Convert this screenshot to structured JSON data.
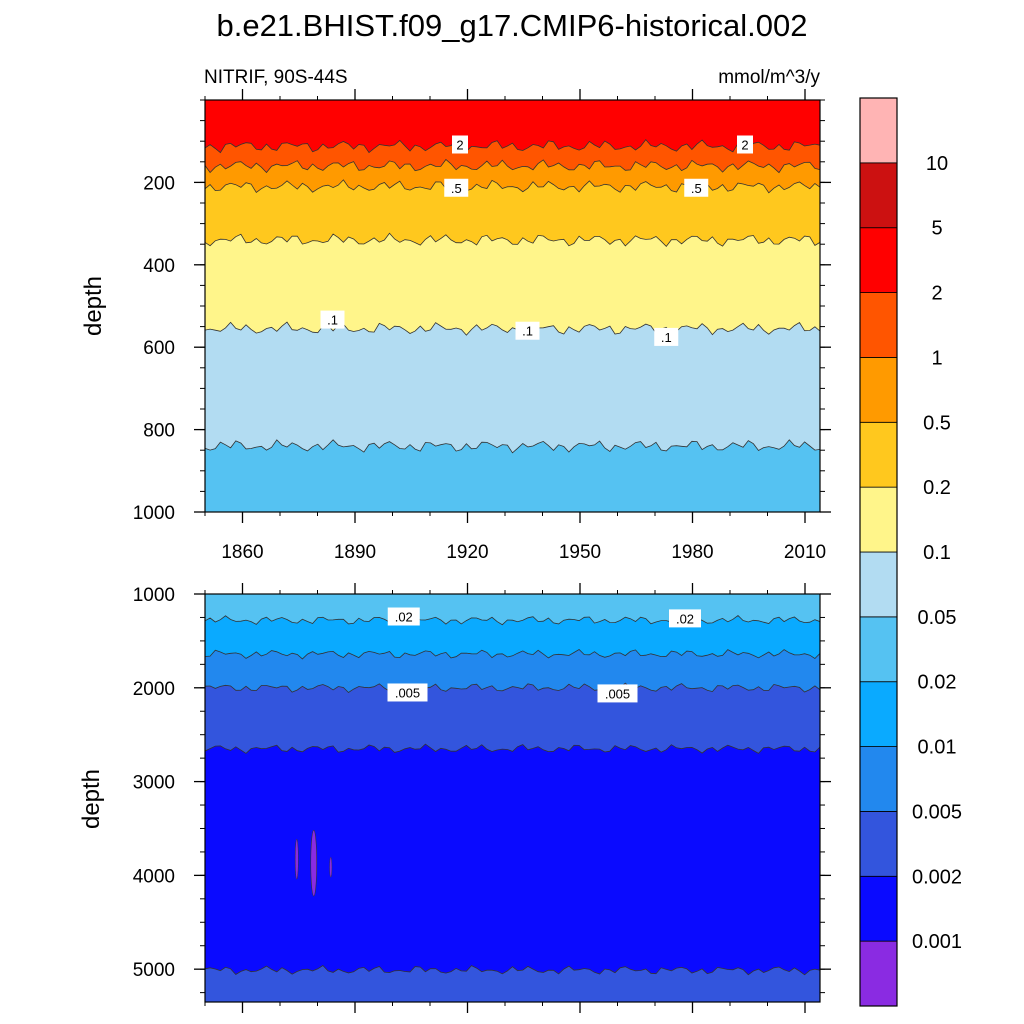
{
  "title": "b.e21.BHIST.f09_g17.CMIP6-historical.002",
  "colors": {
    "levels": [
      "#8a2be2",
      "#0a0aff",
      "#3355dd",
      "#2288ee",
      "#0aaaff",
      "#55c2f2",
      "#b2dcf2",
      "#fff58a",
      "#ffc81e",
      "#ff9a00",
      "#ff5500",
      "#ff0000",
      "#cc1111",
      "#ffb4b4"
    ],
    "contour_line": "#333333",
    "axes": "#000000"
  },
  "chart_data": [
    {
      "type": "heatmap",
      "subtype": "filled-contour",
      "left_label": "NITRIF, 90S-44S",
      "right_label": "mmol/m^3/y",
      "xlabel": "",
      "ylabel": "depth",
      "xlim": [
        1850,
        2014
      ],
      "ylim": [
        1000,
        0
      ],
      "y_inverted": true,
      "xticks": [
        1860,
        1890,
        1920,
        1950,
        1980,
        2010
      ],
      "xtick_labels": [
        "1860",
        "1890",
        "1920",
        "1950",
        "1980",
        "2010"
      ],
      "yticks": [
        200,
        400,
        600,
        800,
        1000
      ],
      "ytick_labels": [
        "200",
        "400",
        "600",
        "800",
        "1000"
      ],
      "bands": [
        {
          "min": 2,
          "max": 5,
          "top": 0,
          "bottom": 112
        },
        {
          "min": 1,
          "max": 2,
          "top": 112,
          "bottom": 160
        },
        {
          "min": 0.5,
          "max": 1,
          "top": 160,
          "bottom": 210
        },
        {
          "min": 0.2,
          "max": 0.5,
          "top": 210,
          "bottom": 340
        },
        {
          "min": 0.1,
          "max": 0.2,
          "top": 340,
          "bottom": 555
        },
        {
          "min": 0.05,
          "max": 0.1,
          "top": 555,
          "bottom": 840
        },
        {
          "min": 0.02,
          "max": 0.05,
          "top": 840,
          "bottom": 1000
        }
      ],
      "contour_labels": [
        {
          "text": "2",
          "x": 1918,
          "depth": 108
        },
        {
          "text": "2",
          "x": 1994,
          "depth": 108
        },
        {
          "text": ".5",
          "x": 1917,
          "depth": 213
        },
        {
          "text": ".5",
          "x": 1981,
          "depth": 213
        },
        {
          "text": ".1",
          "x": 1884,
          "depth": 533
        },
        {
          "text": ".1",
          "x": 1936,
          "depth": 560
        },
        {
          "text": ".1",
          "x": 1973,
          "depth": 575
        }
      ]
    },
    {
      "type": "heatmap",
      "subtype": "filled-contour",
      "xlabel": "",
      "ylabel": "depth",
      "xlim": [
        1850,
        2014
      ],
      "ylim": [
        5350,
        1000
      ],
      "y_inverted": true,
      "xticks": [
        1860,
        1890,
        1920,
        1950,
        1980,
        2010
      ],
      "xtick_labels": [
        "",
        "",
        "",
        "",
        "",
        ""
      ],
      "yticks": [
        1000,
        2000,
        3000,
        4000,
        5000
      ],
      "ytick_labels": [
        "1000",
        "2000",
        "3000",
        "4000",
        "5000"
      ],
      "bands": [
        {
          "min": 0.02,
          "max": 0.05,
          "top": 1000,
          "bottom": 1280
        },
        {
          "min": 0.01,
          "max": 0.02,
          "top": 1280,
          "bottom": 1640
        },
        {
          "min": 0.005,
          "max": 0.01,
          "top": 1640,
          "bottom": 2000
        },
        {
          "min": 0.002,
          "max": 0.005,
          "top": 2000,
          "bottom": 2650
        },
        {
          "min": 0.001,
          "max": 0.002,
          "top": 2650,
          "bottom": 5010
        },
        {
          "min": 0.002,
          "max": 0.005,
          "top": 5010,
          "bottom": 5350
        }
      ],
      "contour_labels": [
        {
          "text": ".02",
          "x": 1903,
          "depth": 1240
        },
        {
          "text": ".02",
          "x": 1978,
          "depth": 1260
        },
        {
          "text": ".005",
          "x": 1904,
          "depth": 2050
        },
        {
          "text": ".005",
          "x": 1960,
          "depth": 2060
        }
      ],
      "patch": {
        "min": 0,
        "max": 0.001,
        "x": 1879,
        "depth": 3870
      }
    }
  ],
  "colorbar": {
    "levels": [
      0.001,
      0.002,
      0.005,
      0.01,
      0.02,
      0.05,
      0.1,
      0.2,
      0.5,
      1,
      2,
      5,
      10
    ],
    "labels": [
      "0.001",
      "0.002",
      "0.005",
      "0.01",
      "0.02",
      "0.05",
      "0.1",
      "0.2",
      "0.5",
      "1",
      "2",
      "5",
      "10"
    ]
  }
}
